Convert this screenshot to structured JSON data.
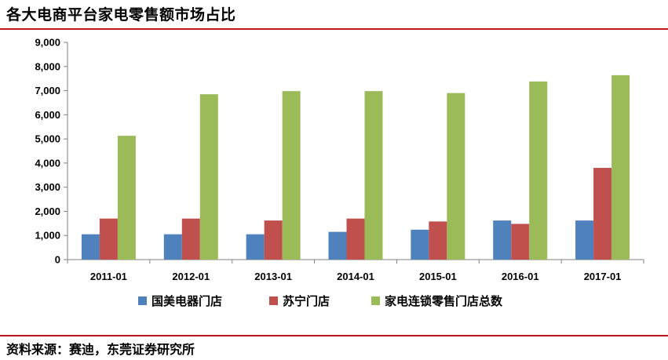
{
  "title": "各大电商平台家电零售额市场占比",
  "source": "资料来源：赛迪，东莞证券研究所",
  "chart_data": {
    "type": "bar",
    "categories": [
      "2011-01",
      "2012-01",
      "2013-01",
      "2014-01",
      "2015-01",
      "2016-01",
      "2017-01"
    ],
    "series": [
      {
        "name": "国美电器门店",
        "color": "#4f81bd",
        "values": [
          1050,
          1050,
          1050,
          1150,
          1240,
          1620,
          1620
        ]
      },
      {
        "name": "苏宁门店",
        "color": "#c0504d",
        "values": [
          1700,
          1700,
          1620,
          1700,
          1580,
          1480,
          3800
        ]
      },
      {
        "name": "家电连锁零售门店总数",
        "color": "#9bbb59",
        "values": [
          5130,
          6850,
          6980,
          6980,
          6900,
          7380,
          7640
        ]
      }
    ],
    "yticks": [
      "0",
      "1,000",
      "2,000",
      "3,000",
      "4,000",
      "5,000",
      "6,000",
      "7,000",
      "8,000",
      "9,000"
    ],
    "ylim": [
      0,
      9000
    ],
    "grid": false,
    "legend": "bottom"
  }
}
